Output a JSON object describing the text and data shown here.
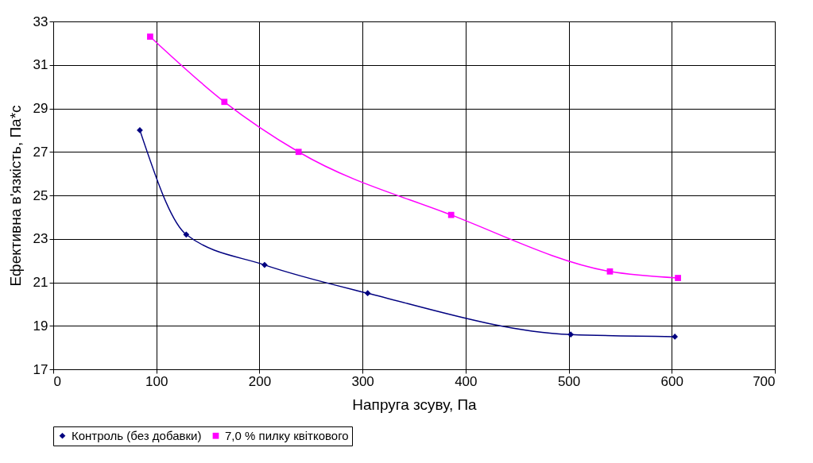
{
  "chart_data": {
    "type": "line",
    "xlabel": "Напруга зсуву, Па",
    "ylabel": "Ефективна в'язкість, Па*с",
    "xlim": [
      0,
      700
    ],
    "xticks": [
      0,
      100,
      200,
      300,
      400,
      500,
      600,
      700
    ],
    "ylim": [
      17,
      33
    ],
    "yticks": [
      17,
      19,
      21,
      23,
      25,
      27,
      29,
      31,
      33
    ],
    "grid": true,
    "legend": "bottom",
    "line_style": "solid",
    "series": [
      {
        "name": "Контроль (без добавки)",
        "color": "#000080",
        "marker": "diamond",
        "x": [
          84,
          129,
          205,
          305,
          502,
          603
        ],
        "values": [
          28.0,
          23.2,
          21.8,
          20.5,
          18.6,
          18.5
        ]
      },
      {
        "name": "7,0 % пилку квіткового",
        "color": "#ff00ff",
        "marker": "square",
        "x": [
          94,
          166,
          238,
          386,
          540,
          606
        ],
        "values": [
          32.3,
          29.3,
          27.0,
          24.1,
          21.5,
          21.2
        ]
      }
    ]
  }
}
